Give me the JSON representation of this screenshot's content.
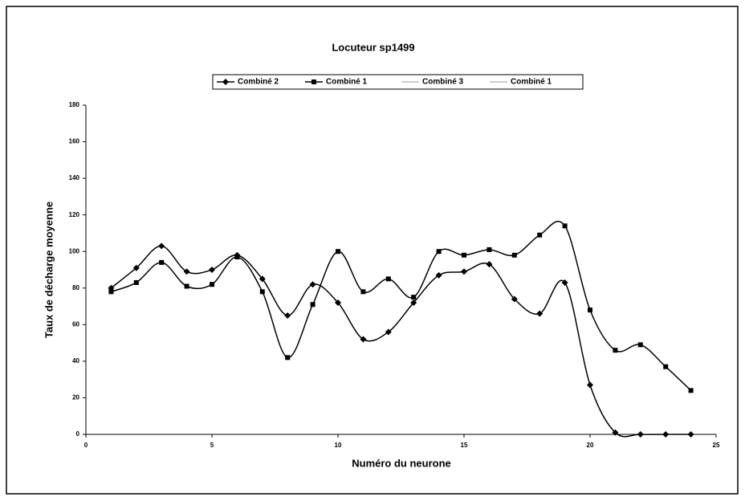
{
  "chart_data": {
    "type": "line",
    "title": "Locuteur sp1499",
    "xlabel": "Numéro du neurone",
    "ylabel": "Taux de décharge moyenne",
    "x": [
      1,
      2,
      3,
      4,
      5,
      6,
      7,
      8,
      9,
      10,
      11,
      12,
      13,
      14,
      15,
      16,
      17,
      18,
      19,
      20,
      21,
      22,
      23,
      24
    ],
    "series": [
      {
        "name": "Combiné 2",
        "color": "#000000",
        "marker": "diamond",
        "values": [
          80,
          91,
          103,
          89,
          90,
          98,
          85,
          65,
          82,
          72,
          52,
          56,
          72,
          87,
          89,
          93,
          74,
          66,
          83,
          27,
          1,
          0,
          0,
          0
        ]
      },
      {
        "name": "Combiné 1",
        "color": "#000000",
        "marker": "square",
        "values": [
          78,
          83,
          94,
          81,
          82,
          97,
          78,
          42,
          71,
          100,
          78,
          85,
          75,
          100,
          98,
          101,
          98,
          109,
          114,
          68,
          46,
          49,
          37,
          24
        ]
      },
      {
        "name": "Combiné 3",
        "color": "#bbbbbb",
        "marker": "none",
        "values": [
          null,
          null,
          null,
          null,
          null,
          null,
          null,
          null,
          null,
          null,
          null,
          null,
          null,
          null,
          null,
          null,
          null,
          null,
          null,
          null,
          null,
          null,
          null,
          null
        ]
      },
      {
        "name": "Combiné 1",
        "color": "#bbbbbb",
        "marker": "none",
        "values": [
          null,
          null,
          null,
          null,
          null,
          null,
          null,
          null,
          null,
          null,
          null,
          null,
          null,
          null,
          null,
          null,
          null,
          null,
          null,
          null,
          null,
          null,
          null,
          null
        ]
      }
    ],
    "xlim": [
      0,
      25
    ],
    "xticks": [
      0,
      5,
      10,
      15,
      20,
      25
    ],
    "ylim": [
      0,
      180
    ],
    "yticks": [
      0,
      20,
      40,
      60,
      80,
      100,
      120,
      140,
      160,
      180
    ],
    "grid": false,
    "legend": "top"
  }
}
